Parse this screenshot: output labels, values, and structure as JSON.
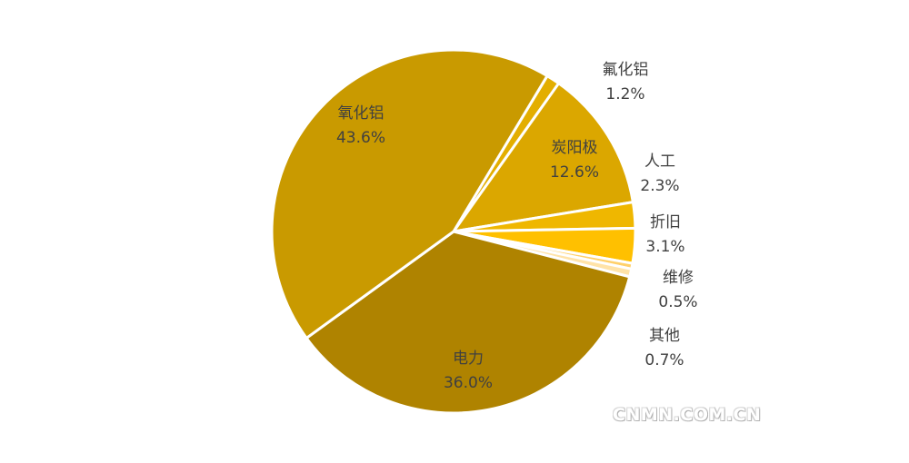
{
  "chart_data": {
    "type": "pie",
    "title": "",
    "slices": [
      {
        "label": "氟化铝",
        "value": 1.2,
        "pct_text": "1.2%",
        "color": "#E3AE00"
      },
      {
        "label": "炭阳极",
        "value": 12.6,
        "pct_text": "12.6%",
        "color": "#DBA700"
      },
      {
        "label": "人工",
        "value": 2.3,
        "pct_text": "2.3%",
        "color": "#EFB700"
      },
      {
        "label": "折旧",
        "value": 3.1,
        "pct_text": "3.1%",
        "color": "#FFC000"
      },
      {
        "label": "维修",
        "value": 0.5,
        "pct_text": "0.5%",
        "color": "#FFD06A"
      },
      {
        "label": "其他",
        "value": 0.7,
        "pct_text": "0.7%",
        "color": "#FFE3A8"
      },
      {
        "label": "电力",
        "value": 36.0,
        "pct_text": "36.0%",
        "color": "#AF8300"
      },
      {
        "label": "氧化铝",
        "value": 43.6,
        "pct_text": "43.6%",
        "color": "#C99A00"
      }
    ]
  },
  "watermark": "CNMN.COM.CN"
}
